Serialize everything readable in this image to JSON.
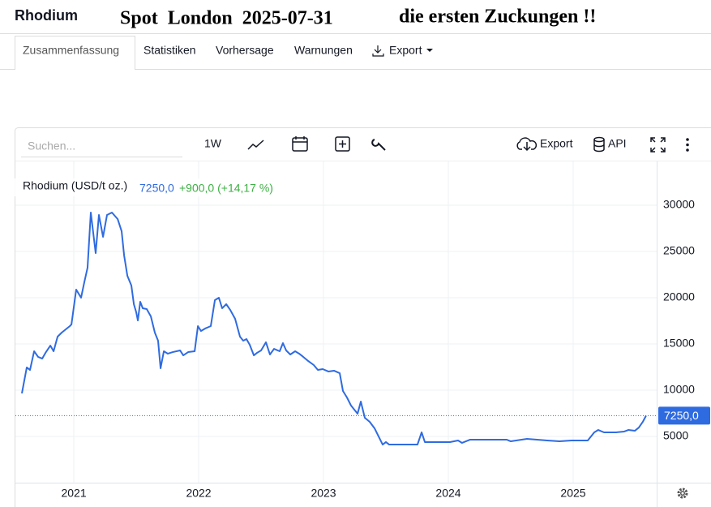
{
  "header": {
    "title": "Rhodium",
    "headline": "Spot  London  2025-07-31",
    "comment": "die ersten Zuckungen !!"
  },
  "tabs": [
    "Zusammenfassung",
    "Statistiken",
    "Vorhersage",
    "Warnungen",
    "Export"
  ],
  "toolbar": {
    "search_placeholder": "Suchen...",
    "interval": "1W",
    "export": "Export",
    "api": "API"
  },
  "chart_data": {
    "type": "line",
    "last_label": "7250,0",
    "change": "+900,0 (+14,17 %)",
    "change_color": "#3cb043",
    "x": [
      2020.584,
      2020.623,
      2020.649,
      2020.682,
      2020.714,
      2020.747,
      2020.773,
      2020.812,
      2020.838,
      2020.87,
      2020.903,
      2020.968,
      2020.981,
      2021.019,
      2021.058,
      2021.084,
      2021.11,
      2021.136,
      2021.175,
      2021.201,
      2021.234,
      2021.266,
      2021.305,
      2021.351,
      2021.383,
      2021.403,
      2021.429,
      2021.461,
      2021.481,
      2021.5,
      2021.513,
      2021.532,
      2021.552,
      2021.584,
      2021.617,
      2021.649,
      2021.675,
      2021.695,
      2021.721,
      2021.753,
      2021.792,
      2021.851,
      2021.877,
      2021.916,
      2021.968,
      2021.994,
      2022.019,
      2022.052,
      2022.097,
      2022.13,
      2022.162,
      2022.188,
      2022.221,
      2022.253,
      2022.292,
      2022.331,
      2022.357,
      2022.383,
      2022.409,
      2022.442,
      2022.468,
      2022.5,
      2022.539,
      2022.571,
      2022.604,
      2022.649,
      2022.675,
      2022.701,
      2022.734,
      2022.773,
      2022.805,
      2022.838,
      2022.877,
      2022.922,
      2022.955,
      2022.994,
      2023.039,
      2023.084,
      2023.13,
      2023.156,
      2023.188,
      2023.221,
      2023.247,
      2023.273,
      2023.299,
      2023.331,
      2023.37,
      2023.409,
      2023.448,
      2023.474,
      2023.5,
      2023.526,
      2023.656,
      2023.753,
      2023.786,
      2023.812,
      2023.851,
      2024.013,
      2024.078,
      2024.11,
      2024.175,
      2024.305,
      2024.468,
      2024.5,
      2024.63,
      2024.792,
      2024.89,
      2024.987,
      2025.117,
      2025.169,
      2025.201,
      2025.247,
      2025.344,
      2025.409,
      2025.442,
      2025.494,
      2025.526,
      2025.558,
      2025.584
    ],
    "series": [
      {
        "name": "Rhodium (USD/t oz.)",
        "color": "#2f6be0",
        "values": [
          9650,
          12460,
          12190,
          14210,
          13600,
          13420,
          14040,
          14820,
          14210,
          15790,
          16230,
          16930,
          17110,
          20880,
          20000,
          21670,
          23250,
          29210,
          24820,
          28950,
          26580,
          28950,
          29210,
          28510,
          27190,
          24560,
          22370,
          21320,
          19300,
          18420,
          17540,
          19560,
          18860,
          18770,
          17980,
          16230,
          15350,
          12370,
          14210,
          13950,
          14120,
          14300,
          13770,
          14120,
          14210,
          16930,
          16400,
          16670,
          16930,
          19740,
          20000,
          18860,
          19300,
          18680,
          17720,
          15790,
          15350,
          15530,
          14910,
          13770,
          14040,
          14300,
          15180,
          13860,
          14470,
          14210,
          15090,
          14300,
          13860,
          14210,
          13950,
          13600,
          13160,
          12720,
          12190,
          12280,
          12020,
          12110,
          11840,
          9910,
          9210,
          8330,
          7890,
          7460,
          8770,
          7020,
          6580,
          5880,
          4820,
          4120,
          4390,
          4120,
          4120,
          4120,
          5440,
          4390,
          4390,
          4390,
          4560,
          4300,
          4650,
          4650,
          4650,
          4470,
          4740,
          4560,
          4470,
          4560,
          4560,
          5440,
          5700,
          5440,
          5440,
          5530,
          5700,
          5610,
          5960,
          6580,
          7250
        ]
      }
    ],
    "xlim": [
      2020.584,
      2025.669
    ],
    "xticks": [
      2021,
      2022,
      2023,
      2024,
      2025
    ],
    "ylim": [
      0,
      34650
    ],
    "yticks": [
      5000,
      10000,
      15000,
      20000,
      25000,
      30000
    ],
    "grid": true
  }
}
